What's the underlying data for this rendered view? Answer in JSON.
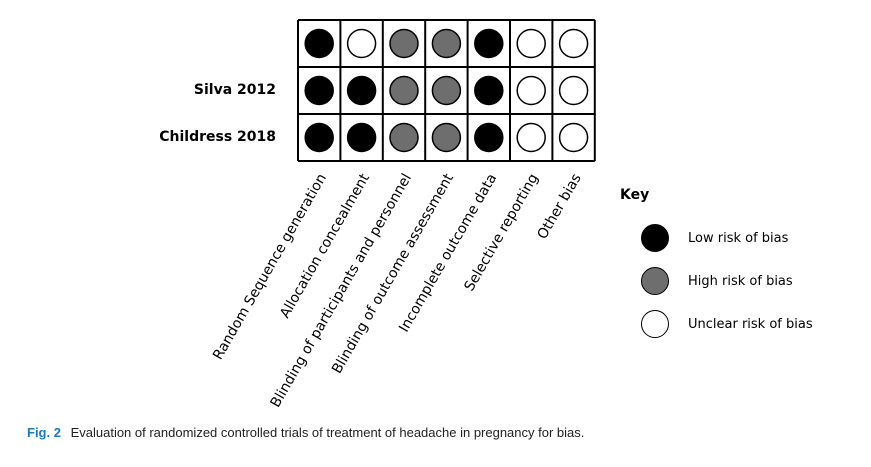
{
  "studies": [
    "",
    "Silva 2012",
    "Childress 2018"
  ],
  "domains": [
    "Random Sequence generation",
    "Allocation concealment",
    "Blinding of participants and personnel",
    "Blinding of outcome assessment",
    "Incomplete outcome data",
    "Selective reporting",
    "Other bias"
  ],
  "ratings": [
    [
      "low",
      "unclear",
      "high",
      "high",
      "low",
      "unclear",
      "unclear"
    ],
    [
      "low",
      "low",
      "high",
      "high",
      "low",
      "unclear",
      "unclear"
    ],
    [
      "low",
      "low",
      "high",
      "high",
      "low",
      "unclear",
      "unclear"
    ]
  ],
  "key": {
    "title": "Key",
    "items": [
      {
        "id": "low",
        "label": "Low risk of bias",
        "color": "#000000"
      },
      {
        "id": "high",
        "label": "High risk of bias",
        "color": "#6e6e6e"
      },
      {
        "id": "unclear",
        "label": "Unclear risk of bias",
        "color": "#ffffff"
      }
    ]
  },
  "caption": {
    "fig_label": "Fig. 2",
    "text": "Evaluation of randomized controlled trials of treatment of headache in pregnancy for bias."
  }
}
